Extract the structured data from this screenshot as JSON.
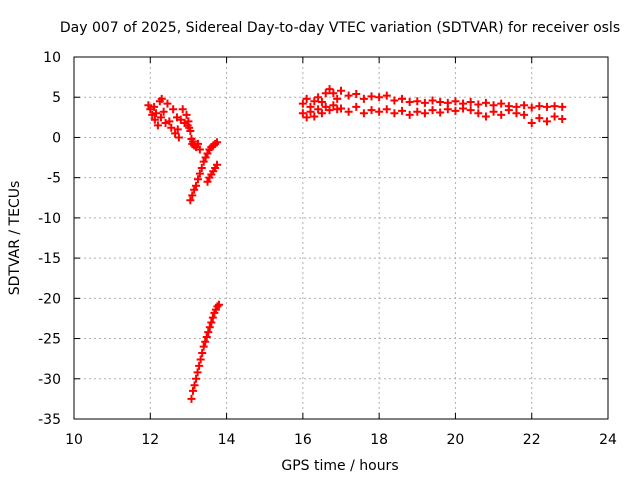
{
  "chart_data": {
    "type": "scatter",
    "title": "Day 007 of 2025, Sidereal Day-to-day VTEC variation (SDTVAR) for receiver osls",
    "xlabel": "GPS time / hours",
    "ylabel": "SDTVAR / TECUs",
    "xlim": [
      10,
      24
    ],
    "ylim": [
      -35,
      10
    ],
    "x_ticks": [
      10,
      12,
      14,
      16,
      18,
      20,
      22,
      24
    ],
    "y_ticks": [
      10,
      5,
      0,
      -5,
      -10,
      -15,
      -20,
      -25,
      -30,
      -35
    ],
    "grid": true,
    "legend": "none",
    "marker": "plus",
    "color": "#ff0000",
    "series": [
      {
        "x": [
          11.95,
          12.0,
          12.05,
          12.1,
          12.12,
          12.15,
          12.2,
          12.25,
          12.28,
          12.3,
          12.35,
          12.4,
          12.45,
          12.5,
          12.55,
          12.6,
          12.65,
          12.7,
          12.72,
          12.75,
          12.8,
          12.85,
          12.9,
          12.95,
          12.98,
          13.0,
          13.02,
          13.05,
          13.08,
          13.1,
          13.12,
          13.15,
          13.2,
          13.25,
          13.3
        ],
        "y": [
          4.0,
          3.5,
          2.8,
          3.8,
          2.2,
          3.0,
          1.5,
          4.5,
          2.5,
          4.8,
          3.2,
          1.8,
          4.2,
          2.0,
          1.2,
          3.5,
          0.5,
          2.5,
          1.0,
          0.0,
          2.2,
          3.5,
          1.8,
          2.8,
          1.5,
          2.0,
          1.2,
          0.8,
          -0.2,
          -0.8,
          -0.5,
          -1.0,
          -1.2,
          -0.8,
          -1.5
        ]
      },
      {
        "x": [
          13.05,
          13.1,
          13.15,
          13.2,
          13.25,
          13.3,
          13.35,
          13.4,
          13.45,
          13.5,
          13.55,
          13.6,
          13.65,
          13.7,
          13.75,
          13.5,
          13.55,
          13.6,
          13.65,
          13.7,
          13.75
        ],
        "y": [
          -7.8,
          -7.2,
          -6.5,
          -6.0,
          -5.2,
          -4.5,
          -3.8,
          -3.0,
          -2.5,
          -2.0,
          -1.5,
          -1.2,
          -1.0,
          -0.8,
          -0.6,
          -5.5,
          -5.0,
          -4.6,
          -4.2,
          -3.8,
          -3.4
        ]
      },
      {
        "x": [
          13.08,
          13.12,
          13.16,
          13.2,
          13.24,
          13.28,
          13.32,
          13.36,
          13.4,
          13.44,
          13.48,
          13.52,
          13.56,
          13.6,
          13.64,
          13.68,
          13.72,
          13.76,
          13.8
        ],
        "y": [
          -32.5,
          -31.5,
          -30.8,
          -30.0,
          -29.2,
          -28.4,
          -27.6,
          -26.8,
          -26.0,
          -25.4,
          -24.8,
          -24.2,
          -23.6,
          -23.0,
          -22.4,
          -21.8,
          -21.4,
          -21.0,
          -20.8
        ]
      },
      {
        "x": [
          16.0,
          16.1,
          16.2,
          16.3,
          16.4,
          16.5,
          16.6,
          16.7,
          16.8,
          16.9,
          17.0,
          17.2,
          17.4,
          17.6,
          17.8,
          18.0,
          18.2,
          18.4,
          18.6,
          18.8,
          19.0,
          19.2,
          19.4,
          19.6,
          19.8,
          20.0,
          20.2,
          20.4,
          20.6,
          20.8,
          21.0,
          21.2,
          21.4,
          21.6,
          21.8,
          22.0,
          22.2,
          22.4,
          22.6,
          22.8
        ],
        "y": [
          4.2,
          4.8,
          3.8,
          4.5,
          5.0,
          4.4,
          5.5,
          6.0,
          5.5,
          4.8,
          5.8,
          5.2,
          5.4,
          4.8,
          5.1,
          5.0,
          5.2,
          4.6,
          4.8,
          4.4,
          4.5,
          4.3,
          4.6,
          4.4,
          4.3,
          4.5,
          4.2,
          4.4,
          4.1,
          4.3,
          4.0,
          4.2,
          3.9,
          3.8,
          4.0,
          3.7,
          3.9,
          3.8,
          3.9,
          3.8
        ]
      },
      {
        "x": [
          16.0,
          16.1,
          16.2,
          16.3,
          16.4,
          16.5,
          16.6,
          16.7,
          16.8,
          16.9,
          17.0,
          17.2,
          17.4,
          17.6,
          17.8,
          18.0,
          18.2,
          18.4,
          18.6,
          18.8,
          19.0,
          19.2,
          19.4,
          19.6,
          19.8,
          20.0,
          20.2,
          20.4,
          20.6,
          20.8,
          21.0,
          21.2,
          21.4,
          21.6,
          21.8,
          22.0,
          22.2,
          22.4,
          22.6,
          22.8
        ],
        "y": [
          3.0,
          2.5,
          3.2,
          2.6,
          3.5,
          3.0,
          3.8,
          3.4,
          4.0,
          3.5,
          3.6,
          3.2,
          3.8,
          3.0,
          3.4,
          3.2,
          3.5,
          3.0,
          3.3,
          2.8,
          3.2,
          3.0,
          3.4,
          3.1,
          3.5,
          3.3,
          3.6,
          3.4,
          3.0,
          2.6,
          3.2,
          2.8,
          3.4,
          3.0,
          2.8,
          1.8,
          2.4,
          2.0,
          2.6,
          2.3
        ]
      }
    ]
  }
}
